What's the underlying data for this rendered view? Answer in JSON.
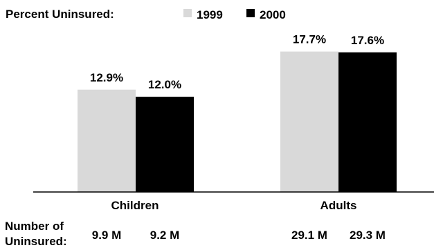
{
  "chart_data": {
    "type": "bar",
    "title": "Percent Uninsured:",
    "categories": [
      "Children",
      "Adults"
    ],
    "series": [
      {
        "name": "1999",
        "color": "#d9d9d9",
        "values": [
          12.9,
          17.7
        ],
        "value_labels": [
          "12.9%",
          "17.7%"
        ]
      },
      {
        "name": "2000",
        "color": "#000000",
        "values": [
          12.0,
          17.6
        ],
        "value_labels": [
          "12.0%",
          "17.6%"
        ]
      }
    ],
    "ylim": [
      0,
      20
    ],
    "grid": false,
    "legend_placement": "top-center",
    "footer": {
      "label_line1": "Number of",
      "label_line2": "Uninsured:",
      "values": [
        [
          "9.9 M",
          "9.2 M"
        ],
        [
          "29.1 M",
          "29.3 M"
        ]
      ]
    }
  }
}
